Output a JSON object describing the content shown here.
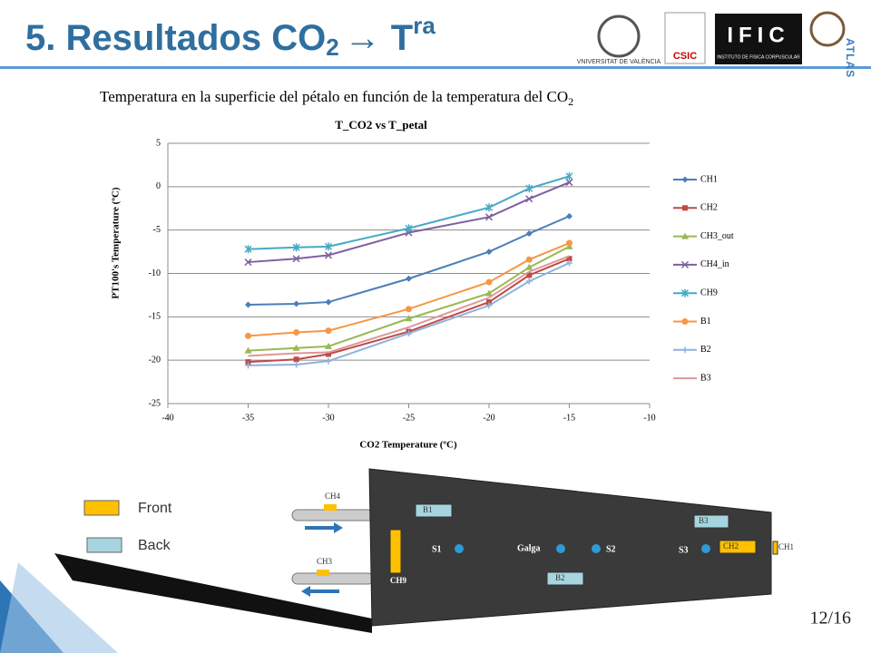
{
  "slide": {
    "title": {
      "main": "5. Resultados CO",
      "sub": "2",
      "arrow": "→ T",
      "sup": "ra"
    },
    "subtitle": {
      "main": "Temperatura en la superficie del pétalo en función de la temperatura del CO",
      "sub": "2"
    },
    "logos": {
      "uv": "VNIVERSITAT DE VALÈNCIA",
      "csic": "CSIC",
      "ific": "IFIC",
      "ific_full": "INSTITUTO DE FISICA CORPUSCULAR",
      "atlas": "ATLAS"
    },
    "page": "12/16"
  },
  "chart_data": {
    "type": "line",
    "title": "T_CO2 vs T_petal",
    "x_label": "CO2 Temperature (ºC)",
    "y_label": "PT100's Temperature (ºC)",
    "x": [
      -35,
      -32,
      -30,
      -25,
      -20,
      -17.5,
      -15
    ],
    "xlim": [
      -40,
      -10
    ],
    "xticks": [
      -40,
      -35,
      -30,
      -25,
      -20,
      -15,
      -10
    ],
    "ylim": [
      -25,
      5
    ],
    "yticks": [
      -25,
      -20,
      -15,
      -10,
      -5,
      0,
      5
    ],
    "grid": true,
    "legend": "right",
    "series": [
      {
        "name": "CH1",
        "color": "#4a7ebb",
        "marker": "diamond",
        "values": [
          -13.6,
          -13.5,
          -13.3,
          -10.6,
          -7.5,
          -5.4,
          -3.4
        ]
      },
      {
        "name": "CH2",
        "color": "#be4b48",
        "marker": "square",
        "values": [
          -20.2,
          -19.9,
          -19.3,
          -16.7,
          -13.3,
          -10.2,
          -8.3
        ]
      },
      {
        "name": "CH3_out",
        "color": "#98b954",
        "marker": "triangle",
        "values": [
          -18.9,
          -18.6,
          -18.4,
          -15.2,
          -12.3,
          -9.3,
          -6.9
        ]
      },
      {
        "name": "CH4_in",
        "color": "#7d60a0",
        "marker": "x",
        "values": [
          -8.7,
          -8.3,
          -7.9,
          -5.3,
          -3.5,
          -1.4,
          0.5
        ]
      },
      {
        "name": "CH9",
        "color": "#46aac5",
        "marker": "star",
        "values": [
          -7.2,
          -7.0,
          -6.9,
          -4.8,
          -2.4,
          -0.2,
          1.2
        ]
      },
      {
        "name": "B1",
        "color": "#f79646",
        "marker": "circle",
        "values": [
          -17.2,
          -16.8,
          -16.6,
          -14.1,
          -11.0,
          -8.4,
          -6.5
        ]
      },
      {
        "name": "B2",
        "color": "#8fb2dc",
        "marker": "plus",
        "values": [
          -20.6,
          -20.5,
          -20.1,
          -16.9,
          -13.7,
          -10.9,
          -8.8
        ]
      },
      {
        "name": "B3",
        "color": "#dd9896",
        "marker": "none",
        "values": [
          -19.5,
          -19.2,
          -19.1,
          -16.2,
          -12.8,
          -9.8,
          -8.0
        ]
      }
    ]
  },
  "diagram": {
    "legend": {
      "front": "Front",
      "back": "Back"
    },
    "labels": {
      "ch4": "CH4",
      "ch3": "CH3",
      "b1": "B1",
      "b3": "B3",
      "s1": "S1",
      "galga": "Galga",
      "s2": "S2",
      "s3": "S3",
      "ch2": "CH2",
      "ch1": "CH1",
      "ch9": "CH9",
      "b2": "B2"
    }
  }
}
